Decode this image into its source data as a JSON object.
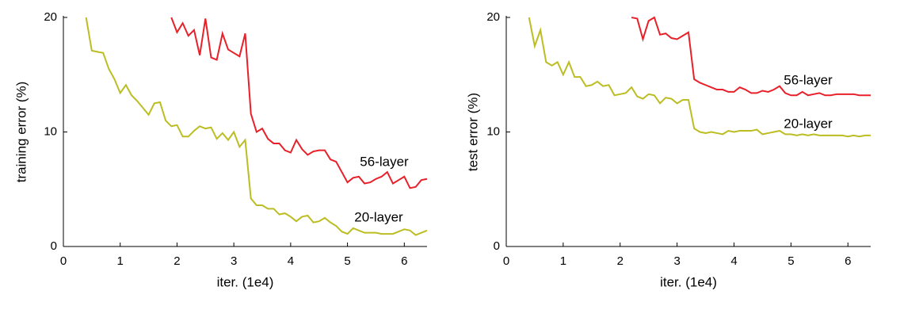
{
  "chart_data": [
    {
      "type": "line",
      "xlabel": "iter. (1e4)",
      "ylabel": "training error (%)",
      "xlim": [
        0,
        6.4
      ],
      "ylim": [
        0,
        20
      ],
      "xticks": [
        0,
        1,
        2,
        3,
        4,
        5,
        6
      ],
      "yticks": [
        0,
        10,
        20
      ],
      "x": [
        0.4,
        0.5,
        0.6,
        0.7,
        0.8,
        0.9,
        1.0,
        1.1,
        1.2,
        1.3,
        1.4,
        1.5,
        1.6,
        1.7,
        1.8,
        1.9,
        2.0,
        2.1,
        2.2,
        2.3,
        2.4,
        2.5,
        2.6,
        2.7,
        2.8,
        2.9,
        3.0,
        3.1,
        3.2,
        3.3,
        3.4,
        3.5,
        3.6,
        3.7,
        3.8,
        3.9,
        4.0,
        4.1,
        4.2,
        4.3,
        4.4,
        4.5,
        4.6,
        4.7,
        4.8,
        4.9,
        5.0,
        5.1,
        5.2,
        5.3,
        5.4,
        5.5,
        5.6,
        5.7,
        5.8,
        5.9,
        6.0,
        6.1,
        6.2,
        6.3,
        6.4
      ],
      "series": [
        {
          "name": "56-layer",
          "color": "#e8202a",
          "values": [
            null,
            null,
            null,
            null,
            null,
            null,
            null,
            null,
            null,
            null,
            null,
            null,
            null,
            null,
            null,
            20,
            18.7,
            19.5,
            18.4,
            18.9,
            16.7,
            19.9,
            16.5,
            16.3,
            18.6,
            17.2,
            16.9,
            16.6,
            18.6,
            11.6,
            10.0,
            10.3,
            9.4,
            9.0,
            9.0,
            8.4,
            8.2,
            9.3,
            8.5,
            8.0,
            8.3,
            8.4,
            8.4,
            7.6,
            7.4,
            6.5,
            5.6,
            6.0,
            6.1,
            5.5,
            5.6,
            5.9,
            6.1,
            6.5,
            5.5,
            5.8,
            6.1,
            5.1,
            5.2,
            5.8,
            5.9
          ]
        },
        {
          "name": "20-layer",
          "color": "#bcbd22",
          "values": [
            20,
            17.1,
            17.0,
            16.9,
            15.5,
            14.6,
            13.4,
            14.1,
            13.2,
            12.7,
            12.1,
            11.5,
            12.5,
            12.6,
            11.0,
            10.5,
            10.6,
            9.6,
            9.6,
            10.1,
            10.5,
            10.3,
            10.4,
            9.4,
            9.9,
            9.3,
            10.0,
            8.7,
            9.3,
            4.2,
            3.6,
            3.6,
            3.3,
            3.3,
            2.8,
            2.9,
            2.6,
            2.2,
            2.6,
            2.7,
            2.1,
            2.2,
            2.5,
            2.1,
            1.8,
            1.3,
            1.1,
            1.6,
            1.4,
            1.2,
            1.2,
            1.2,
            1.1,
            1.1,
            1.1,
            1.3,
            1.5,
            1.4,
            1.0,
            1.2,
            1.4
          ]
        }
      ]
    },
    {
      "type": "line",
      "xlabel": "iter. (1e4)",
      "ylabel": "test error (%)",
      "xlim": [
        0,
        6.4
      ],
      "ylim": [
        0,
        20
      ],
      "xticks": [
        0,
        1,
        2,
        3,
        4,
        5,
        6
      ],
      "yticks": [
        0,
        10,
        20
      ],
      "x": [
        0.4,
        0.5,
        0.6,
        0.7,
        0.8,
        0.9,
        1.0,
        1.1,
        1.2,
        1.3,
        1.4,
        1.5,
        1.6,
        1.7,
        1.8,
        1.9,
        2.0,
        2.1,
        2.2,
        2.3,
        2.4,
        2.5,
        2.6,
        2.7,
        2.8,
        2.9,
        3.0,
        3.1,
        3.2,
        3.3,
        3.4,
        3.5,
        3.6,
        3.7,
        3.8,
        3.9,
        4.0,
        4.1,
        4.2,
        4.3,
        4.4,
        4.5,
        4.6,
        4.7,
        4.8,
        4.9,
        5.0,
        5.1,
        5.2,
        5.3,
        5.4,
        5.5,
        5.6,
        5.7,
        5.8,
        5.9,
        6.0,
        6.1,
        6.2,
        6.3,
        6.4
      ],
      "series": [
        {
          "name": "56-layer",
          "color": "#e8202a",
          "values": [
            null,
            null,
            null,
            null,
            null,
            null,
            null,
            null,
            null,
            null,
            null,
            null,
            null,
            null,
            null,
            null,
            null,
            null,
            20.0,
            19.9,
            18.1,
            19.7,
            20.0,
            18.5,
            18.6,
            18.2,
            18.1,
            18.4,
            18.7,
            14.6,
            14.3,
            14.1,
            13.9,
            13.7,
            13.7,
            13.5,
            13.5,
            13.9,
            13.7,
            13.4,
            13.4,
            13.6,
            13.5,
            13.7,
            14.0,
            13.4,
            13.2,
            13.2,
            13.5,
            13.2,
            13.3,
            13.4,
            13.2,
            13.2,
            13.3,
            13.3,
            13.3,
            13.3,
            13.2,
            13.2,
            13.2
          ]
        },
        {
          "name": "20-layer",
          "color": "#bcbd22",
          "values": [
            20,
            17.5,
            18.9,
            16.1,
            15.8,
            16.1,
            15.0,
            16.1,
            14.8,
            14.8,
            14.0,
            14.1,
            14.4,
            14.0,
            14.1,
            13.2,
            13.3,
            13.4,
            13.9,
            13.1,
            12.9,
            13.3,
            13.2,
            12.5,
            13.0,
            12.9,
            12.5,
            12.8,
            12.8,
            10.3,
            10.0,
            9.9,
            10.0,
            9.9,
            9.8,
            10.1,
            10.0,
            10.1,
            10.1,
            10.1,
            10.2,
            9.8,
            9.9,
            10.0,
            10.1,
            9.8,
            9.8,
            9.7,
            9.8,
            9.7,
            9.8,
            9.7,
            9.7,
            9.7,
            9.7,
            9.7,
            9.6,
            9.7,
            9.6,
            9.7,
            9.7
          ]
        }
      ]
    }
  ]
}
